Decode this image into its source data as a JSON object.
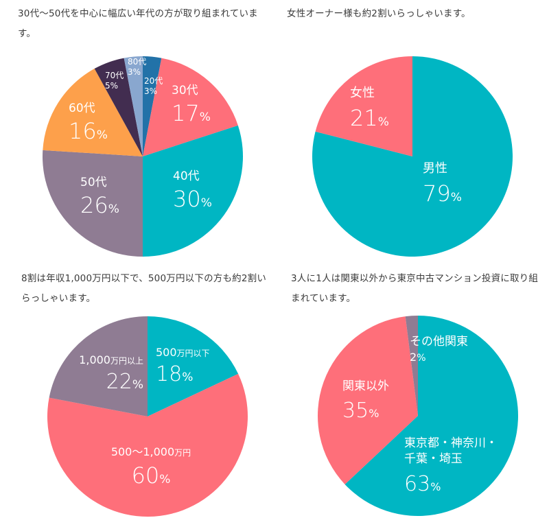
{
  "captions": {
    "age": "30代〜50代を中心に幅広い年代の方が取り組まれています。",
    "gender": "女性オーナー様も約2割いらっしゃいます。",
    "income": "8割は年収1,000万円以下で、500万円以下の方も約2割いらっしゃいます。",
    "region": "3人に1人は関東以外から東京中古マンション投資に取り組まれています。"
  },
  "chart_data": [
    {
      "type": "pie",
      "title": "30代〜50代を中心に幅広い年代の方が取り組まれています。",
      "categories": [
        "20代",
        "30代",
        "40代",
        "50代",
        "60代",
        "70代",
        "80代"
      ],
      "values": [
        3,
        17,
        30,
        26,
        16,
        5,
        3
      ],
      "colors": [
        "#2272a8",
        "#fe6f7a",
        "#00b6c3",
        "#8f7c93",
        "#fda04b",
        "#422d50",
        "#89a7cf"
      ],
      "unit": "%",
      "start_angle": "12 o'clock, clockwise"
    },
    {
      "type": "pie",
      "title": "女性オーナー様も約2割いらっしゃいます。",
      "categories": [
        "男性",
        "女性"
      ],
      "values": [
        79,
        21
      ],
      "colors": [
        "#00b6c3",
        "#fe6f7a"
      ],
      "unit": "%",
      "start_angle": "12 o'clock, clockwise"
    },
    {
      "type": "pie",
      "title": "8割は年収1,000万円以下で、500万円以下の方も約2割いらっしゃいます。",
      "categories": [
        "500万円以下",
        "500〜1,000万円",
        "1,000万円以上"
      ],
      "values": [
        18,
        60,
        22
      ],
      "colors": [
        "#00b6c3",
        "#fe6f7a",
        "#8f7c93"
      ],
      "unit": "%",
      "start_angle": "12 o'clock, clockwise"
    },
    {
      "type": "pie",
      "title": "3人に1人は関東以外から東京中古マンション投資に取り組まれています。",
      "categories": [
        "東京都・神奈川・千葉・埼玉",
        "関東以外",
        "その他関東"
      ],
      "values": [
        63,
        35,
        2
      ],
      "colors": [
        "#00b6c3",
        "#fe6f7a",
        "#8f7c93"
      ],
      "unit": "%",
      "start_angle": "12 o'clock, clockwise"
    }
  ],
  "labels": {
    "age": {
      "s20": {
        "name": "20代",
        "num": "3",
        "sign": "%"
      },
      "s30": {
        "name": "30代",
        "num": "17",
        "sign": "%"
      },
      "s40": {
        "name": "40代",
        "num": "30",
        "sign": "%"
      },
      "s50": {
        "name": "50代",
        "num": "26",
        "sign": "%"
      },
      "s60": {
        "name": "60代",
        "num": "16",
        "sign": "%"
      },
      "s70": {
        "name": "70代",
        "num": "5",
        "sign": "%"
      },
      "s80": {
        "name": "80代",
        "num": "3",
        "sign": "%"
      }
    },
    "gender": {
      "male": {
        "name": "男性",
        "num": "79",
        "sign": "%"
      },
      "female": {
        "name": "女性",
        "num": "21",
        "sign": "%"
      }
    },
    "income": {
      "low": {
        "name_num": "500",
        "name_unit": "万円以下",
        "num": "18",
        "sign": "%"
      },
      "mid": {
        "name_num": "500〜1,000",
        "name_unit": "万円",
        "num": "60",
        "sign": "%"
      },
      "high": {
        "name_num": "1,000",
        "name_unit": "万円以上",
        "num": "22",
        "sign": "%"
      }
    },
    "region": {
      "metro": {
        "name_line1": "東京都・神奈川・",
        "name_line2": "千葉・埼玉",
        "num": "63",
        "sign": "%"
      },
      "outside": {
        "name": "関東以外",
        "num": "35",
        "sign": "%"
      },
      "other": {
        "name": "その他関東",
        "num": "2",
        "sign": "%"
      }
    }
  }
}
